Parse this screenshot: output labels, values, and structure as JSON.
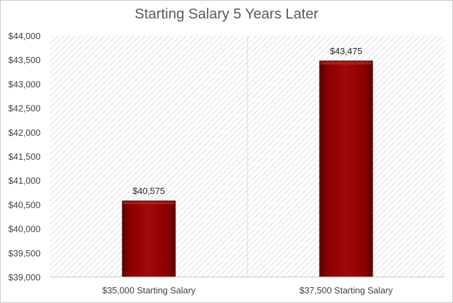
{
  "chart_data": {
    "type": "bar",
    "title": "Starting Salary 5 Years Later",
    "xlabel": "",
    "ylabel": "",
    "categories": [
      "$35,000 Starting Salary",
      "$37,500 Starting Salary"
    ],
    "values": [
      40575,
      43475
    ],
    "data_labels": [
      "$40,575",
      "$43,475"
    ],
    "ylim": [
      39000,
      44000
    ],
    "y_ticks": [
      39000,
      39500,
      40000,
      40500,
      41000,
      41500,
      42000,
      42500,
      43000,
      43500,
      44000
    ],
    "y_tick_labels": [
      "$39,000",
      "$39,500",
      "$40,000",
      "$40,500",
      "$41,000",
      "$41,500",
      "$42,000",
      "$42,500",
      "$43,000",
      "$43,500",
      "$44,000"
    ],
    "grid": false,
    "legend": "none",
    "bar_color": "#8b0000",
    "plot_background": "hatched light gray"
  }
}
